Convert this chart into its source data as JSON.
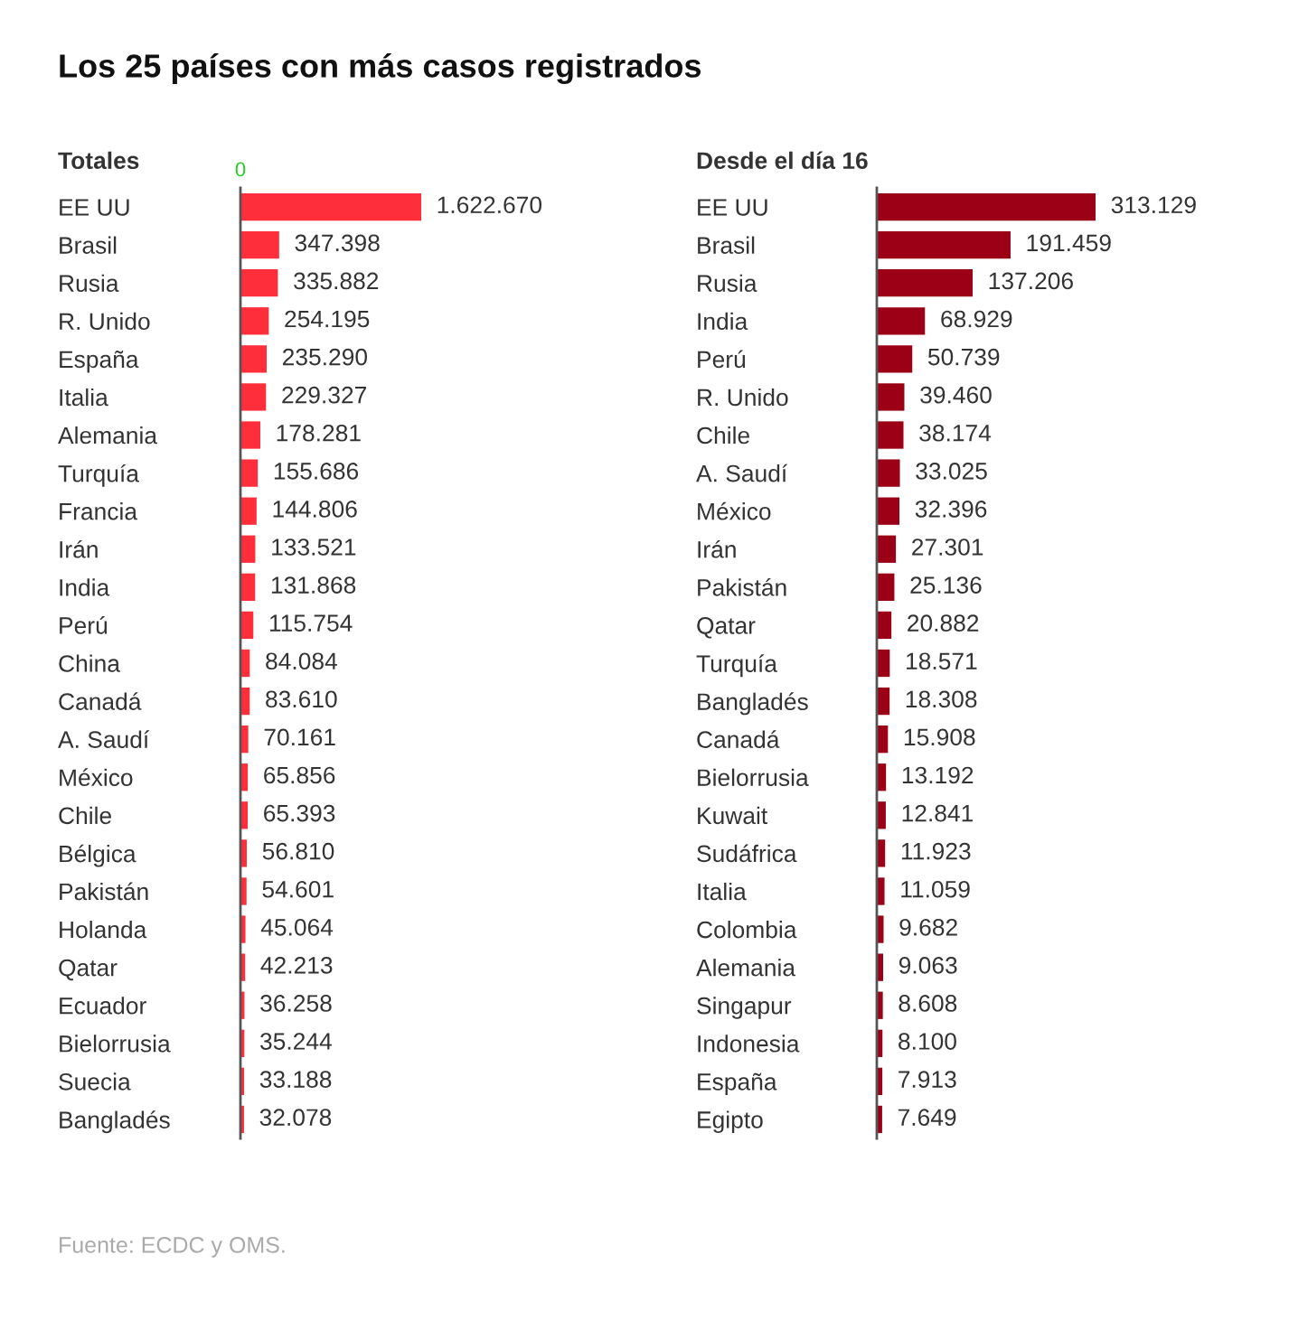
{
  "chart_data": [
    {
      "type": "bar",
      "orientation": "horizontal",
      "title": "Los 25 países con más casos registrados",
      "subtitle": "Totales",
      "annotations": [
        "0",
        "Fuente: ECDC y OMS."
      ],
      "categories": [
        "EE UU",
        "Brasil",
        "Rusia",
        "R. Unido",
        "España",
        "Italia",
        "Alemania",
        "Turquía",
        "Francia",
        "Irán",
        "India",
        "Perú",
        "China",
        "Canadá",
        "A. Saudí",
        "México",
        "Chile",
        "Bélgica",
        "Pakistán",
        "Holanda",
        "Qatar",
        "Ecuador",
        "Bielorrusia",
        "Suecia",
        "Bangladés"
      ],
      "values": [
        1622670,
        347398,
        335882,
        254195,
        235290,
        229327,
        178281,
        155686,
        144806,
        133521,
        131868,
        115754,
        84084,
        83610,
        70161,
        65856,
        65393,
        56810,
        54601,
        45064,
        42213,
        36258,
        35244,
        33188,
        32078
      ],
      "value_labels": [
        "1.622.670",
        "347.398",
        "335.882",
        "254.195",
        "235.290",
        "229.327",
        "178.281",
        "155.686",
        "144.806",
        "133.521",
        "131.868",
        "115.754",
        "84.084",
        "83.610",
        "70.161",
        "65.856",
        "65.393",
        "56.810",
        "54.601",
        "45.064",
        "42.213",
        "36.258",
        "35.244",
        "33.188",
        "32.078"
      ],
      "color": "#ff2e3a",
      "grid": false,
      "legend": false
    },
    {
      "type": "bar",
      "orientation": "horizontal",
      "title": "Desde el día 16",
      "categories": [
        "EE UU",
        "Brasil",
        "Rusia",
        "India",
        "Perú",
        "R. Unido",
        "Chile",
        "A. Saudí",
        "México",
        "Irán",
        "Pakistán",
        "Qatar",
        "Turquía",
        "Bangladés",
        "Canadá",
        "Bielorrusia",
        "Kuwait",
        "Sudáfrica",
        "Italia",
        "Colombia",
        "Alemania",
        "Singapur",
        "Indonesia",
        "España",
        "Egipto"
      ],
      "values": [
        313129,
        191459,
        137206,
        68929,
        50739,
        39460,
        38174,
        33025,
        32396,
        27301,
        25136,
        20882,
        18571,
        18308,
        15908,
        13192,
        12841,
        11923,
        11059,
        9682,
        9063,
        8608,
        8100,
        7913,
        7649
      ],
      "value_labels": [
        "313.129",
        "191.459",
        "137.206",
        "68.929",
        "50.739",
        "39.460",
        "38.174",
        "33.025",
        "32.396",
        "27.301",
        "25.136",
        "20.882",
        "18.571",
        "18.308",
        "15.908",
        "13.192",
        "12.841",
        "11.923",
        "11.059",
        "9.682",
        "9.063",
        "8.608",
        "8.100",
        "7.913",
        "7.649"
      ],
      "color": "#9b0016",
      "grid": false,
      "legend": false
    }
  ]
}
